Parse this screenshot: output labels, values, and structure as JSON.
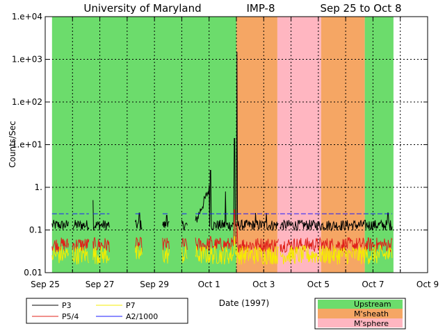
{
  "chart_data": {
    "type": "line",
    "title_left": "University of Maryland",
    "title_center": "IMP-8",
    "title_right": "Sep 25 to Oct 8",
    "xlabel": "Date (1997)",
    "ylabel": "Counts/Sec",
    "yscale": "log",
    "ylim": [
      0.01,
      10000
    ],
    "xlim": [
      0,
      14
    ],
    "y_ticks": [
      {
        "value": 10000,
        "label": "1.e+04"
      },
      {
        "value": 1000,
        "label": "1.e+03"
      },
      {
        "value": 100,
        "label": "1.e+02"
      },
      {
        "value": 10,
        "label": "1.e+01"
      },
      {
        "value": 1,
        "label": "1."
      },
      {
        "value": 0.1,
        "label": "0.1"
      },
      {
        "value": 0.01,
        "label": "0.01"
      }
    ],
    "x_ticks": [
      {
        "value": 0,
        "label": "Sep 25"
      },
      {
        "value": 2,
        "label": "Sep 27"
      },
      {
        "value": 4,
        "label": "Sep 29"
      },
      {
        "value": 6,
        "label": "Oct 1"
      },
      {
        "value": 8,
        "label": "Oct 3"
      },
      {
        "value": 10,
        "label": "Oct 5"
      },
      {
        "value": 12,
        "label": "Oct 7"
      },
      {
        "value": 14,
        "label": "Oct 9"
      }
    ],
    "grid": true,
    "regions": [
      {
        "start": 0.25,
        "end": 7.0,
        "type": "Upstream"
      },
      {
        "start": 7.0,
        "end": 8.5,
        "type": "M'sheath"
      },
      {
        "start": 8.5,
        "end": 10.1,
        "type": "M'sphere"
      },
      {
        "start": 10.1,
        "end": 11.7,
        "type": "M'sheath"
      },
      {
        "start": 11.7,
        "end": 12.75,
        "type": "Upstream"
      }
    ],
    "region_colors": {
      "Upstream": "#6cdc6c",
      "M'sheath": "#f5a664",
      "M'sphere": "#ffb6c1"
    },
    "data_segments": [
      [
        0.25,
        0.85
      ],
      [
        1.0,
        1.6
      ],
      [
        1.75,
        2.35
      ],
      [
        3.3,
        3.55
      ],
      [
        4.3,
        4.55
      ],
      [
        5.0,
        5.2
      ],
      [
        5.5,
        7.0
      ],
      [
        7.0,
        8.55
      ],
      [
        8.6,
        12.7
      ]
    ],
    "series": [
      {
        "name": "P3",
        "color": "#000000",
        "base": 0.13,
        "jitter": 0.25,
        "spikes": [
          {
            "x": 1.75,
            "value": 0.5
          },
          {
            "x": 3.45,
            "value": 0.25
          },
          {
            "x": 4.45,
            "value": 0.22
          },
          {
            "x": 6.05,
            "value": 2.5
          },
          {
            "x": 6.6,
            "value": 0.8
          },
          {
            "x": 6.93,
            "value": 14
          },
          {
            "x": 7.02,
            "value": 1500
          },
          {
            "x": 7.7,
            "value": 0.25
          },
          {
            "x": 8.1,
            "value": 0.25
          },
          {
            "x": 12.55,
            "value": 0.25
          }
        ],
        "ramp": {
          "start": 5.5,
          "end": 6.0,
          "from": 0.15,
          "to": 0.9
        }
      },
      {
        "name": "P5/4",
        "color": "#e0201a",
        "base": 0.045,
        "jitter": 0.35,
        "spikes": [
          {
            "x": 6.05,
            "value": 0.07
          },
          {
            "x": 6.93,
            "value": 0.3
          },
          {
            "x": 7.02,
            "value": 0.15
          }
        ],
        "ramp": null
      },
      {
        "name": "P7",
        "color": "#f5ec00",
        "base": 0.026,
        "jitter": 0.45,
        "spikes": [
          {
            "x": 6.93,
            "value": 0.07
          }
        ],
        "ramp": null
      },
      {
        "name": "A2/1000",
        "color": "#1a1aff",
        "value": 0.24,
        "dashed": true
      }
    ],
    "legend": {
      "series": [
        {
          "name": "P3",
          "color": "#000000"
        },
        {
          "name": "P7",
          "color": "#f5ec00"
        },
        {
          "name": "P5/4",
          "color": "#e0201a"
        },
        {
          "name": "A2/1000",
          "color": "#1a1aff"
        }
      ],
      "regions": [
        {
          "name": "Upstream",
          "color": "#6cdc6c"
        },
        {
          "name": "M'sheath",
          "color": "#f5a664"
        },
        {
          "name": "M'sphere",
          "color": "#ffb6c1"
        }
      ]
    }
  }
}
